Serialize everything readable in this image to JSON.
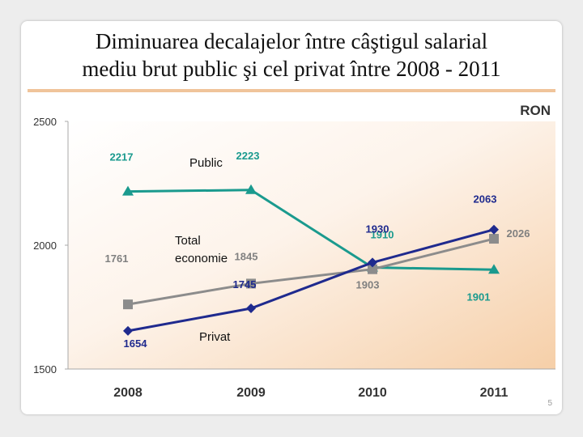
{
  "slide": {
    "title_line1": "Diminuarea decalajelor între câştigul salarial",
    "title_line2": "mediu brut public şi cel privat între 2008 - 2011",
    "slide_number": "5"
  },
  "chart_data": {
    "type": "line",
    "title": "Diminuarea decalajelor între câştigul salarial mediu brut public şi cel privat între 2008 - 2011",
    "unit_label": "RON",
    "categories": [
      "2008",
      "2009",
      "2010",
      "2011"
    ],
    "ylim": [
      1500,
      2500
    ],
    "yticks": [
      1500,
      2000,
      2500
    ],
    "grid": false,
    "series": [
      {
        "name": "Public",
        "values": [
          2217,
          2223,
          1910,
          1901
        ],
        "data_labels": [
          "2217",
          "2223",
          "1910",
          "1901"
        ],
        "color": "#1a9a8e",
        "label_color": "#1a9a8e",
        "marker": "triangle"
      },
      {
        "name": "Total economie",
        "values": [
          1761,
          1845,
          1903,
          2026
        ],
        "data_labels": [
          "1761",
          "1845",
          "1903",
          "2026"
        ],
        "color": "#8c8c8c",
        "label_color": "#808080",
        "marker": "square"
      },
      {
        "name": "Privat",
        "values": [
          1654,
          1745,
          1930,
          2063
        ],
        "data_labels": [
          "1654",
          "1745",
          "1930",
          "2063"
        ],
        "color": "#1f2a8e",
        "label_color": "#1f2a8e",
        "marker": "diamond"
      }
    ]
  }
}
